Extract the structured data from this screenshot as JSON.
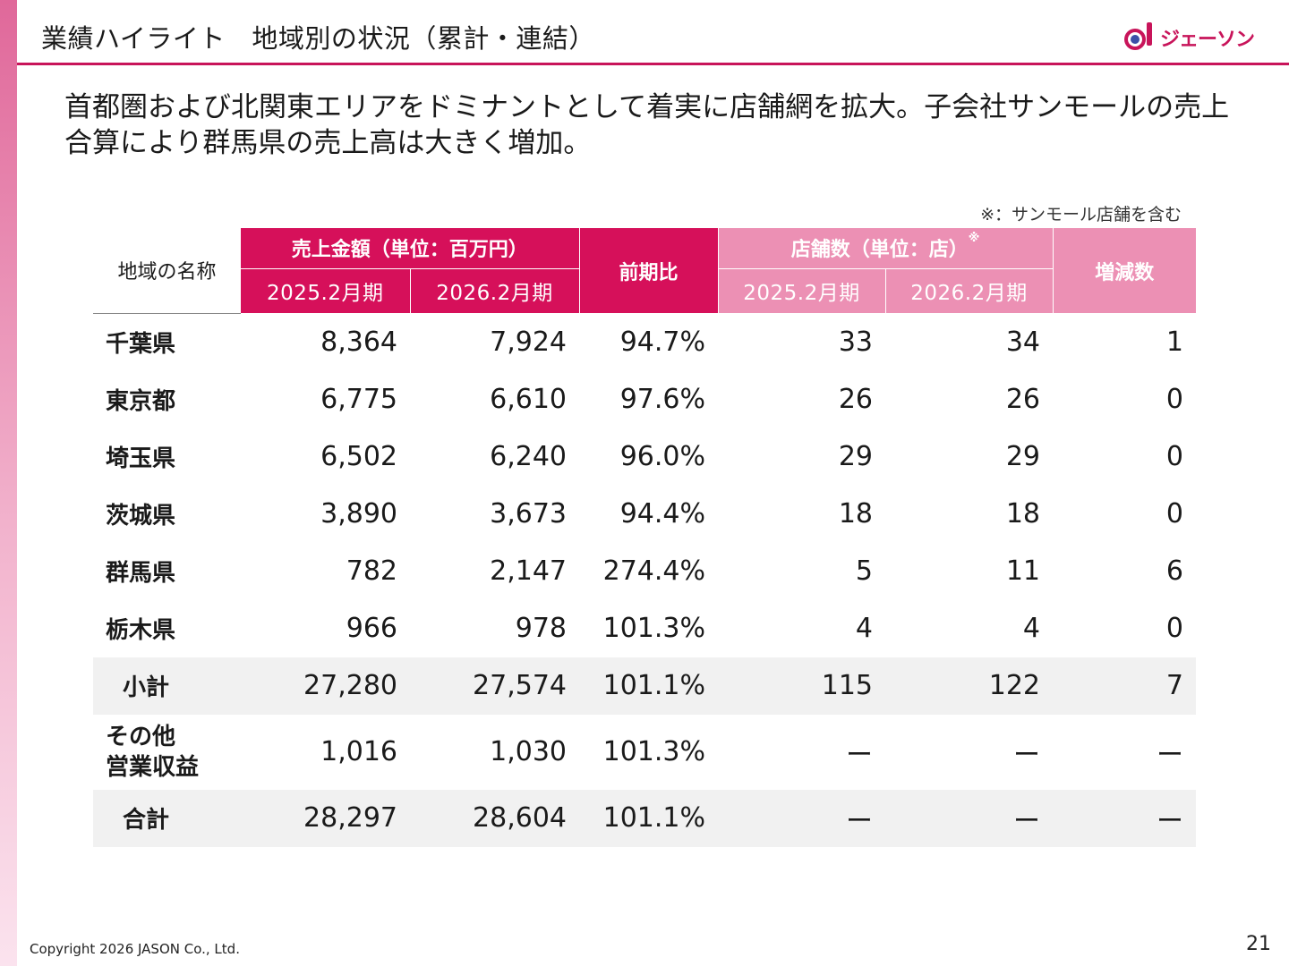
{
  "header": {
    "title": "業績ハイライト　地域別の状況（累計・連結）",
    "logo_text": "ジェーソン"
  },
  "lead": {
    "line1": "首都圏および北関東エリアをドミナントとして着実に店舗網を拡大。子会社サンモールの売上",
    "line2": "合算により群馬県の売上高は大きく増加。"
  },
  "note": "※：サンモール店舗を含む",
  "table": {
    "col_region": "地域の名称",
    "group_sales": "売上金額（単位：百万円）",
    "col_ratio": "前期比",
    "group_stores": "店舗数（単位：店）",
    "group_stores_mark": "※",
    "col_change": "増減数",
    "period_prev": "2025.2月期",
    "period_curr": "2026.2月期",
    "rows": [
      {
        "name": "千葉県",
        "sales_prev": "8,364",
        "sales_curr": "7,924",
        "ratio": "94.7%",
        "stores_prev": "33",
        "stores_curr": "34",
        "change": "1"
      },
      {
        "name": "東京都",
        "sales_prev": "6,775",
        "sales_curr": "6,610",
        "ratio": "97.6%",
        "stores_prev": "26",
        "stores_curr": "26",
        "change": "0"
      },
      {
        "name": "埼玉県",
        "sales_prev": "6,502",
        "sales_curr": "6,240",
        "ratio": "96.0%",
        "stores_prev": "29",
        "stores_curr": "29",
        "change": "0"
      },
      {
        "name": "茨城県",
        "sales_prev": "3,890",
        "sales_curr": "3,673",
        "ratio": "94.4%",
        "stores_prev": "18",
        "stores_curr": "18",
        "change": "0"
      },
      {
        "name": "群馬県",
        "sales_prev": "782",
        "sales_curr": "2,147",
        "ratio": "274.4%",
        "stores_prev": "5",
        "stores_curr": "11",
        "change": "6"
      },
      {
        "name": "栃木県",
        "sales_prev": "966",
        "sales_curr": "978",
        "ratio": "101.3%",
        "stores_prev": "4",
        "stores_curr": "4",
        "change": "0"
      },
      {
        "name": "小計",
        "sales_prev": "27,280",
        "sales_curr": "27,574",
        "ratio": "101.1%",
        "stores_prev": "115",
        "stores_curr": "122",
        "change": "7"
      },
      {
        "name_line1": "その他",
        "name_line2": "営業収益",
        "sales_prev": "1,016",
        "sales_curr": "1,030",
        "ratio": "101.3%",
        "stores_prev": "ー",
        "stores_curr": "ー",
        "change": "ー"
      },
      {
        "name": "合計",
        "sales_prev": "28,297",
        "sales_curr": "28,604",
        "ratio": "101.1%",
        "stores_prev": "ー",
        "stores_curr": "ー",
        "change": "ー"
      }
    ]
  },
  "footer": {
    "copyright": "Copyright 2026 JASON Co., Ltd.",
    "page_number": "21"
  },
  "colors": {
    "accent": "#c8145a",
    "header_dark": "#d6105a",
    "header_light": "#ec90b4",
    "row_shade": "#f1f1f1"
  }
}
